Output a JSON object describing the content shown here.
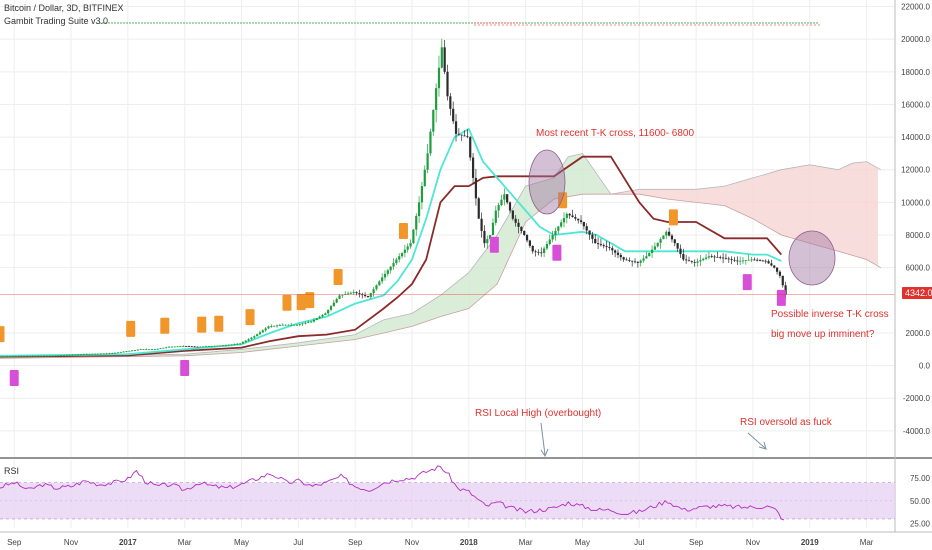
{
  "header": {
    "symbol_line": "Bitcoin / Dollar, 3D, BITFINEX",
    "indicator_line": "Gambit Trading Suite v3.0"
  },
  "annotations": {
    "tk_cross": "Most recent T-K cross, 11600- 6800",
    "inverse_cross": "Possible inverse T-K cross",
    "move_up": "big move up imminent?",
    "rsi_high": "RSI Local High (overbought)",
    "rsi_oversold": "RSI oversold as fuck"
  },
  "price_tag": "4342.0",
  "rsi_panel": {
    "label": "RSI"
  },
  "colors": {
    "candle_up": "#1e9e3e",
    "candle_down": "#2b2b2b",
    "tenkan": "#4ee6d4",
    "kijun": "#8b2a2a",
    "cloud_bull": "#cfe8cf",
    "cloud_bear": "#f6d5d5",
    "rsi_line": "#b030c0",
    "rsi_band": "#e9d3f3",
    "annotation": "#e0312e",
    "signal_buy": "#d64fd6",
    "signal_sell": "#f0962a"
  },
  "chart_data": [
    {
      "type": "candlestick",
      "title": "Bitcoin / Dollar, 3D, BITFINEX",
      "y_ticks": [
        22000,
        20000,
        18000,
        16000,
        14000,
        12000,
        10000,
        8000,
        6000,
        2000,
        0,
        -2000,
        -4000
      ],
      "y_tick_labels": [
        "22000.0",
        "20000.0",
        "18000.0",
        "16000.0",
        "14000.0",
        "12000.0",
        "10000.0",
        "8000.0",
        "6000.0",
        "2000.0",
        "0.0",
        "-2000.0",
        "-4000.0"
      ],
      "ylim": [
        -5600,
        22400
      ],
      "x_ticks": [
        "Sep",
        "Nov",
        "2017",
        "Mar",
        "May",
        "Jul",
        "Sep",
        "Nov",
        "2018",
        "Mar",
        "May",
        "Jul",
        "Sep",
        "Nov",
        "2019",
        "Mar"
      ],
      "x_months": [
        8,
        10,
        12,
        14,
        16,
        18,
        20,
        22,
        24,
        26,
        28,
        30,
        32,
        34,
        36,
        38
      ],
      "xlim": [
        7.5,
        39
      ],
      "grid": true,
      "close_series": [
        [
          7.5,
          580
        ],
        [
          8.5,
          600
        ],
        [
          9.5,
          620
        ],
        [
          10.5,
          700
        ],
        [
          11.5,
          760
        ],
        [
          12.5,
          1000
        ],
        [
          13,
          1000
        ],
        [
          13.5,
          1150
        ],
        [
          14,
          1200
        ],
        [
          14.5,
          1150
        ],
        [
          15,
          1200
        ],
        [
          15.5,
          1250
        ],
        [
          16,
          1350
        ],
        [
          16.5,
          1800
        ],
        [
          17,
          2400
        ],
        [
          17.5,
          2500
        ],
        [
          18,
          2500
        ],
        [
          18.5,
          2700
        ],
        [
          19,
          3200
        ],
        [
          19.5,
          4300
        ],
        [
          20,
          4500
        ],
        [
          20.5,
          4200
        ],
        [
          21,
          5400
        ],
        [
          21.5,
          6500
        ],
        [
          22,
          7500
        ],
        [
          22.3,
          10000
        ],
        [
          22.6,
          13000
        ],
        [
          22.9,
          17000
        ],
        [
          23.1,
          19500
        ],
        [
          23.3,
          16500
        ],
        [
          23.6,
          14200
        ],
        [
          24,
          14000
        ],
        [
          24.2,
          11500
        ],
        [
          24.4,
          9000
        ],
        [
          24.6,
          7500
        ],
        [
          24.8,
          8000
        ],
        [
          25,
          9500
        ],
        [
          25.3,
          10500
        ],
        [
          25.6,
          9000
        ],
        [
          26,
          8000
        ],
        [
          26.3,
          7000
        ],
        [
          26.6,
          6900
        ],
        [
          27,
          8000
        ],
        [
          27.5,
          9300
        ],
        [
          28,
          8800
        ],
        [
          28.5,
          7500
        ],
        [
          29,
          7200
        ],
        [
          29.5,
          6500
        ],
        [
          30,
          6300
        ],
        [
          30.3,
          6700
        ],
        [
          30.6,
          7300
        ],
        [
          31,
          8200
        ],
        [
          31.3,
          7500
        ],
        [
          31.6,
          6500
        ],
        [
          32,
          6300
        ],
        [
          32.5,
          6700
        ],
        [
          33,
          6600
        ],
        [
          33.5,
          6400
        ],
        [
          34,
          6500
        ],
        [
          34.5,
          6400
        ],
        [
          34.8,
          6000
        ],
        [
          35,
          5500
        ],
        [
          35.2,
          4342
        ]
      ],
      "tenkan_series": [
        [
          7.5,
          600
        ],
        [
          12,
          700
        ],
        [
          14,
          1000
        ],
        [
          16,
          1300
        ],
        [
          17,
          2000
        ],
        [
          18,
          2600
        ],
        [
          19,
          3000
        ],
        [
          20,
          3800
        ],
        [
          21,
          4300
        ],
        [
          21.5,
          5200
        ],
        [
          22,
          6500
        ],
        [
          22.5,
          9000
        ],
        [
          23,
          12000
        ],
        [
          23.5,
          14000
        ],
        [
          24,
          14500
        ],
        [
          24.5,
          12500
        ],
        [
          25,
          11500
        ],
        [
          25.5,
          10500
        ],
        [
          26,
          9500
        ],
        [
          26.5,
          8500
        ],
        [
          27,
          8000
        ],
        [
          28,
          8200
        ],
        [
          28.5,
          8000
        ],
        [
          29,
          7500
        ],
        [
          29.5,
          7000
        ],
        [
          30,
          7000
        ],
        [
          31,
          7000
        ],
        [
          31.5,
          7000
        ],
        [
          32,
          7000
        ],
        [
          32.5,
          7000
        ],
        [
          33,
          7000
        ],
        [
          34,
          6800
        ],
        [
          34.5,
          6800
        ],
        [
          35,
          6400
        ]
      ],
      "kijun_series": [
        [
          7.5,
          550
        ],
        [
          12,
          620
        ],
        [
          14,
          900
        ],
        [
          16,
          1100
        ],
        [
          17,
          1500
        ],
        [
          18,
          1800
        ],
        [
          19,
          1900
        ],
        [
          20,
          2200
        ],
        [
          21,
          3500
        ],
        [
          21.5,
          4200
        ],
        [
          22,
          5000
        ],
        [
          22.5,
          6500
        ],
        [
          23,
          10000
        ],
        [
          23.5,
          11000
        ],
        [
          24,
          11000
        ],
        [
          24.5,
          11500
        ],
        [
          25,
          11600
        ],
        [
          26,
          11600
        ],
        [
          27,
          11600
        ],
        [
          28,
          12800
        ],
        [
          29,
          12800
        ],
        [
          30,
          10000
        ],
        [
          30.5,
          9000
        ],
        [
          31,
          8800
        ],
        [
          32,
          8800
        ],
        [
          33,
          7800
        ],
        [
          34,
          7800
        ],
        [
          34.5,
          7800
        ],
        [
          35,
          6800
        ]
      ],
      "cloud_span_a": [
        [
          7.5,
          500
        ],
        [
          14,
          700
        ],
        [
          16,
          1000
        ],
        [
          18,
          1400
        ],
        [
          20,
          1900
        ],
        [
          21,
          2800
        ],
        [
          22,
          3200
        ],
        [
          23,
          4300
        ],
        [
          24,
          5700
        ],
        [
          25,
          8000
        ],
        [
          26,
          11000
        ],
        [
          27,
          11500
        ],
        [
          27.5,
          12800
        ],
        [
          28,
          13000
        ],
        [
          29,
          10500
        ],
        [
          30,
          10800
        ],
        [
          32,
          10800
        ],
        [
          33,
          11000
        ],
        [
          34,
          11500
        ],
        [
          35,
          12000
        ],
        [
          36,
          12300
        ],
        [
          37,
          12000
        ],
        [
          37.5,
          12400
        ],
        [
          38,
          12500
        ],
        [
          38.5,
          12000
        ]
      ],
      "cloud_span_b": [
        [
          7.5,
          450
        ],
        [
          14,
          600
        ],
        [
          16,
          800
        ],
        [
          18,
          1200
        ],
        [
          20,
          1600
        ],
        [
          21,
          2000
        ],
        [
          22,
          2400
        ],
        [
          23,
          3000
        ],
        [
          24,
          3500
        ],
        [
          25,
          5000
        ],
        [
          26,
          8800
        ],
        [
          27,
          10200
        ],
        [
          28,
          10500
        ],
        [
          29,
          10500
        ],
        [
          30,
          10500
        ],
        [
          31,
          10200
        ],
        [
          32,
          10000
        ],
        [
          33,
          9800
        ],
        [
          34,
          9000
        ],
        [
          35,
          8000
        ],
        [
          36,
          7500
        ],
        [
          37,
          7000
        ],
        [
          38,
          6500
        ],
        [
          38.5,
          6000
        ]
      ],
      "price_reference": 4342.0,
      "buy_signals_months": [
        8,
        14,
        24.9,
        27.1,
        33.8,
        35.0
      ],
      "sell_signals_months": [
        7.5,
        12.1,
        13.3,
        14.6,
        15.2,
        16.3,
        17.6,
        18.1,
        18.4,
        19.4,
        21.7,
        27.3,
        31.2
      ],
      "annotations": [
        "Most recent T-K cross, 11600- 6800",
        "Possible inverse T-K cross",
        "big move up imminent?"
      ]
    },
    {
      "type": "line",
      "title": "RSI",
      "y_ticks": [
        75,
        50,
        25
      ],
      "y_tick_labels": [
        "75.00",
        "50.00",
        "25.00"
      ],
      "ylim": [
        20,
        95
      ],
      "band": [
        30,
        70
      ],
      "series": [
        {
          "name": "RSI",
          "values": [
            [
              7.5,
              65
            ],
            [
              8,
              70
            ],
            [
              8.5,
              62
            ],
            [
              9,
              68
            ],
            [
              9.5,
              64
            ],
            [
              10,
              66
            ],
            [
              10.5,
              72
            ],
            [
              11,
              68
            ],
            [
              11.5,
              70
            ],
            [
              12,
              74
            ],
            [
              12.3,
              83
            ],
            [
              12.6,
              72
            ],
            [
              13,
              66
            ],
            [
              13.5,
              68
            ],
            [
              14,
              62
            ],
            [
              14.5,
              70
            ],
            [
              15,
              66
            ],
            [
              15.5,
              64
            ],
            [
              16,
              68
            ],
            [
              16.5,
              74
            ],
            [
              17,
              80
            ],
            [
              17.3,
              76
            ],
            [
              17.6,
              70
            ],
            [
              18,
              72
            ],
            [
              18.5,
              66
            ],
            [
              19,
              70
            ],
            [
              19.5,
              77
            ],
            [
              20,
              66
            ],
            [
              20.5,
              62
            ],
            [
              21,
              70
            ],
            [
              21.5,
              74
            ],
            [
              22,
              75
            ],
            [
              22.5,
              82
            ],
            [
              23,
              88
            ],
            [
              23.3,
              78
            ],
            [
              23.6,
              64
            ],
            [
              24,
              60
            ],
            [
              24.3,
              52
            ],
            [
              24.6,
              44
            ],
            [
              25,
              48
            ],
            [
              25.5,
              42
            ],
            [
              26,
              38
            ],
            [
              26.5,
              40
            ],
            [
              27,
              42
            ],
            [
              27.5,
              48
            ],
            [
              28,
              44
            ],
            [
              28.5,
              40
            ],
            [
              29,
              40
            ],
            [
              29.5,
              36
            ],
            [
              30,
              38
            ],
            [
              30.5,
              44
            ],
            [
              31,
              50
            ],
            [
              31.3,
              44
            ],
            [
              31.6,
              40
            ],
            [
              32,
              42
            ],
            [
              32.5,
              44
            ],
            [
              33,
              44
            ],
            [
              33.5,
              43
            ],
            [
              34,
              43
            ],
            [
              34.5,
              44
            ],
            [
              34.8,
              40
            ],
            [
              35,
              32
            ],
            [
              35.2,
              23
            ]
          ]
        }
      ]
    }
  ]
}
